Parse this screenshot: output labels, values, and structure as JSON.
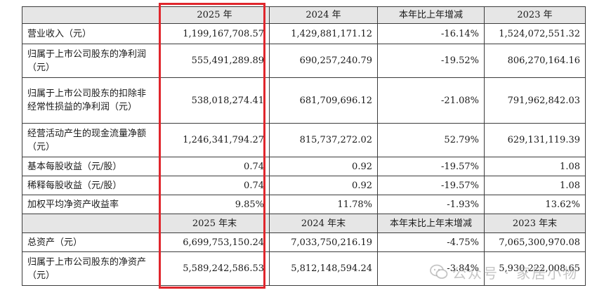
{
  "header1": {
    "c1": "2025 年",
    "c2": "2024 年",
    "c3": "本年比上年增减",
    "c4": "2023 年"
  },
  "rows1": [
    {
      "label": "营业收入（元）",
      "c1": "1,199,167,708.57",
      "c2": "1,429,881,171.12",
      "c3": "-16.14%",
      "c4": "1,524,072,551.32"
    },
    {
      "label": "归属于上市公司股东的净利润（元）",
      "c1": "555,491,289.89",
      "c2": "690,257,240.79",
      "c3": "-19.52%",
      "c4": "806,270,164.16"
    },
    {
      "label": "归属于上市公司股东的扣除非经常性损益的净利润（元）",
      "c1": "538,018,274.41",
      "c2": "681,709,696.12",
      "c3": "-21.08%",
      "c4": "791,962,842.03"
    },
    {
      "label": "经营活动产生的现金流量净额（元）",
      "c1": "1,246,341,794.27",
      "c2": "815,737,272.02",
      "c3": "52.79%",
      "c4": "629,131,119.39"
    },
    {
      "label": "基本每股收益（元/股）",
      "c1": "0.74",
      "c2": "0.92",
      "c3": "-19.57%",
      "c4": "1.08"
    },
    {
      "label": "稀释每股收益（元/股）",
      "c1": "0.74",
      "c2": "0.92",
      "c3": "-19.57%",
      "c4": "1.08"
    },
    {
      "label": "加权平均净资产收益率",
      "c1": "9.85%",
      "c2": "11.78%",
      "c3": "-1.93%",
      "c4": "13.62%"
    }
  ],
  "header2": {
    "c1": "2025 年末",
    "c2": "2024 年末",
    "c3": "本年末比上年末增减",
    "c4": "2023 年末"
  },
  "rows2": [
    {
      "label": "总资产（元）",
      "c1": "6,699,753,150.24",
      "c2": "7,033,750,216.19",
      "c3": "-4.75%",
      "c4": "7,065,300,970.08"
    },
    {
      "label": "归属于上市公司股东的净资产（元）",
      "c1": "5,589,242,586.53",
      "c2": "5,812,148,594.24",
      "c3": "-3.84%",
      "c4": "5,930,222,008.65"
    }
  ],
  "watermark": {
    "text": "公众号 · 家居小物"
  },
  "colors": {
    "highlight": "#e0262c",
    "header_bg": "#e6e6e6",
    "border": "#3c3c3c"
  }
}
